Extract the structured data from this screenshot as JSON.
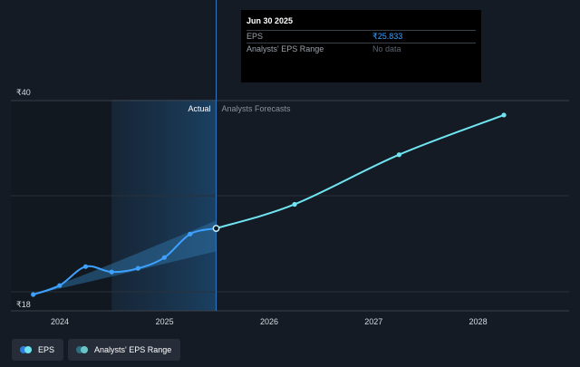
{
  "tooltip": {
    "title": "Jun 30 2025",
    "rows": [
      {
        "label": "EPS",
        "value": "₹25.833"
      },
      {
        "label": "Analysts' EPS Range",
        "value": "No data"
      }
    ]
  },
  "legend": [
    {
      "label": "EPS"
    },
    {
      "label": "Analysts' EPS Range"
    }
  ],
  "colors": {
    "background": "#151b24",
    "eps_line": "#3da1ff",
    "forecast_line": "#6fe5f2",
    "range_band": "#2d6e9e"
  },
  "chart_data": {
    "type": "line",
    "x_ticks": [
      "2024",
      "2025",
      "2026",
      "2027",
      "2028"
    ],
    "y_ticks": [
      "₹18",
      "₹40"
    ],
    "ylim": [
      18,
      40
    ],
    "region_labels": {
      "actual": "Actual",
      "forecast": "Analysts Forecasts"
    },
    "series": [
      {
        "name": "EPS",
        "x": [
          "2023-09-30",
          "2023-12-31",
          "2024-03-31",
          "2024-06-30",
          "2024-09-30",
          "2024-12-31",
          "2025-03-31",
          "2025-06-30"
        ],
        "values": [
          18.5,
          19.5,
          21.6,
          21.0,
          21.4,
          22.6,
          25.2,
          25.833
        ]
      },
      {
        "name": "Analysts Forecasts",
        "x": [
          "2025-06-30",
          "2026-03-31",
          "2027-03-31",
          "2028-03-31"
        ],
        "values": [
          25.833,
          28.5,
          34.0,
          38.4
        ]
      }
    ],
    "range": {
      "x": [
        "2023-09-30",
        "2024-06-30",
        "2025-06-30"
      ],
      "low": [
        18.5,
        20.5,
        23.3
      ],
      "high": [
        18.5,
        21.9,
        26.7
      ]
    }
  }
}
